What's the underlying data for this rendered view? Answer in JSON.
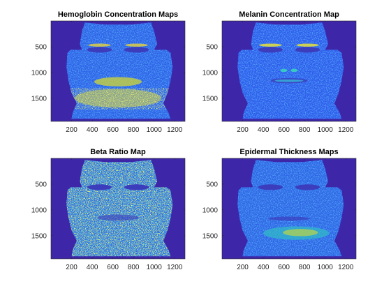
{
  "figure": {
    "background": "#ffffff"
  },
  "chart_data": [
    {
      "type": "heatmap",
      "title": "Hemoglobin Concentration Maps",
      "xticks": [
        200,
        400,
        600,
        800,
        1000,
        1200
      ],
      "yticks": [
        500,
        1000,
        1500
      ],
      "xlim": [
        0,
        1300
      ],
      "ylim": [
        0,
        1950
      ],
      "y_direction": "reversed",
      "colormap": "parula",
      "background_color": "#3d26a8",
      "content": "face-shaped concentration map; high values around eyebrows, lips and chin"
    },
    {
      "type": "heatmap",
      "title": "Melanin Concentration Map",
      "xticks": [
        200,
        400,
        600,
        800,
        1000,
        1200
      ],
      "yticks": [
        500,
        1000,
        1500
      ],
      "xlim": [
        0,
        1300
      ],
      "ylim": [
        0,
        1950
      ],
      "y_direction": "reversed",
      "colormap": "parula",
      "background_color": "#3d26a8",
      "content": "face-shaped concentration map; highlights at eyebrows, nostrils and lips"
    },
    {
      "type": "heatmap",
      "title": "Beta Ratio Map",
      "xticks": [
        200,
        400,
        600,
        800,
        1000,
        1200
      ],
      "yticks": [
        500,
        1000,
        1500
      ],
      "xlim": [
        0,
        1300
      ],
      "ylim": [
        0,
        1950
      ],
      "y_direction": "reversed",
      "colormap": "parula",
      "background_color": "#3d26a8",
      "content": "noisy speckled face map with many high (yellow) values"
    },
    {
      "type": "heatmap",
      "title": "Epidermal Thickness Maps",
      "xticks": [
        200,
        400,
        600,
        800,
        1000,
        1200
      ],
      "yticks": [
        500,
        1000,
        1500
      ],
      "xlim": [
        0,
        1300
      ],
      "ylim": [
        0,
        1950
      ],
      "y_direction": "reversed",
      "colormap": "parula",
      "background_color": "#3d26a8",
      "content": "mostly uniform face map with higher values around the chin"
    }
  ]
}
